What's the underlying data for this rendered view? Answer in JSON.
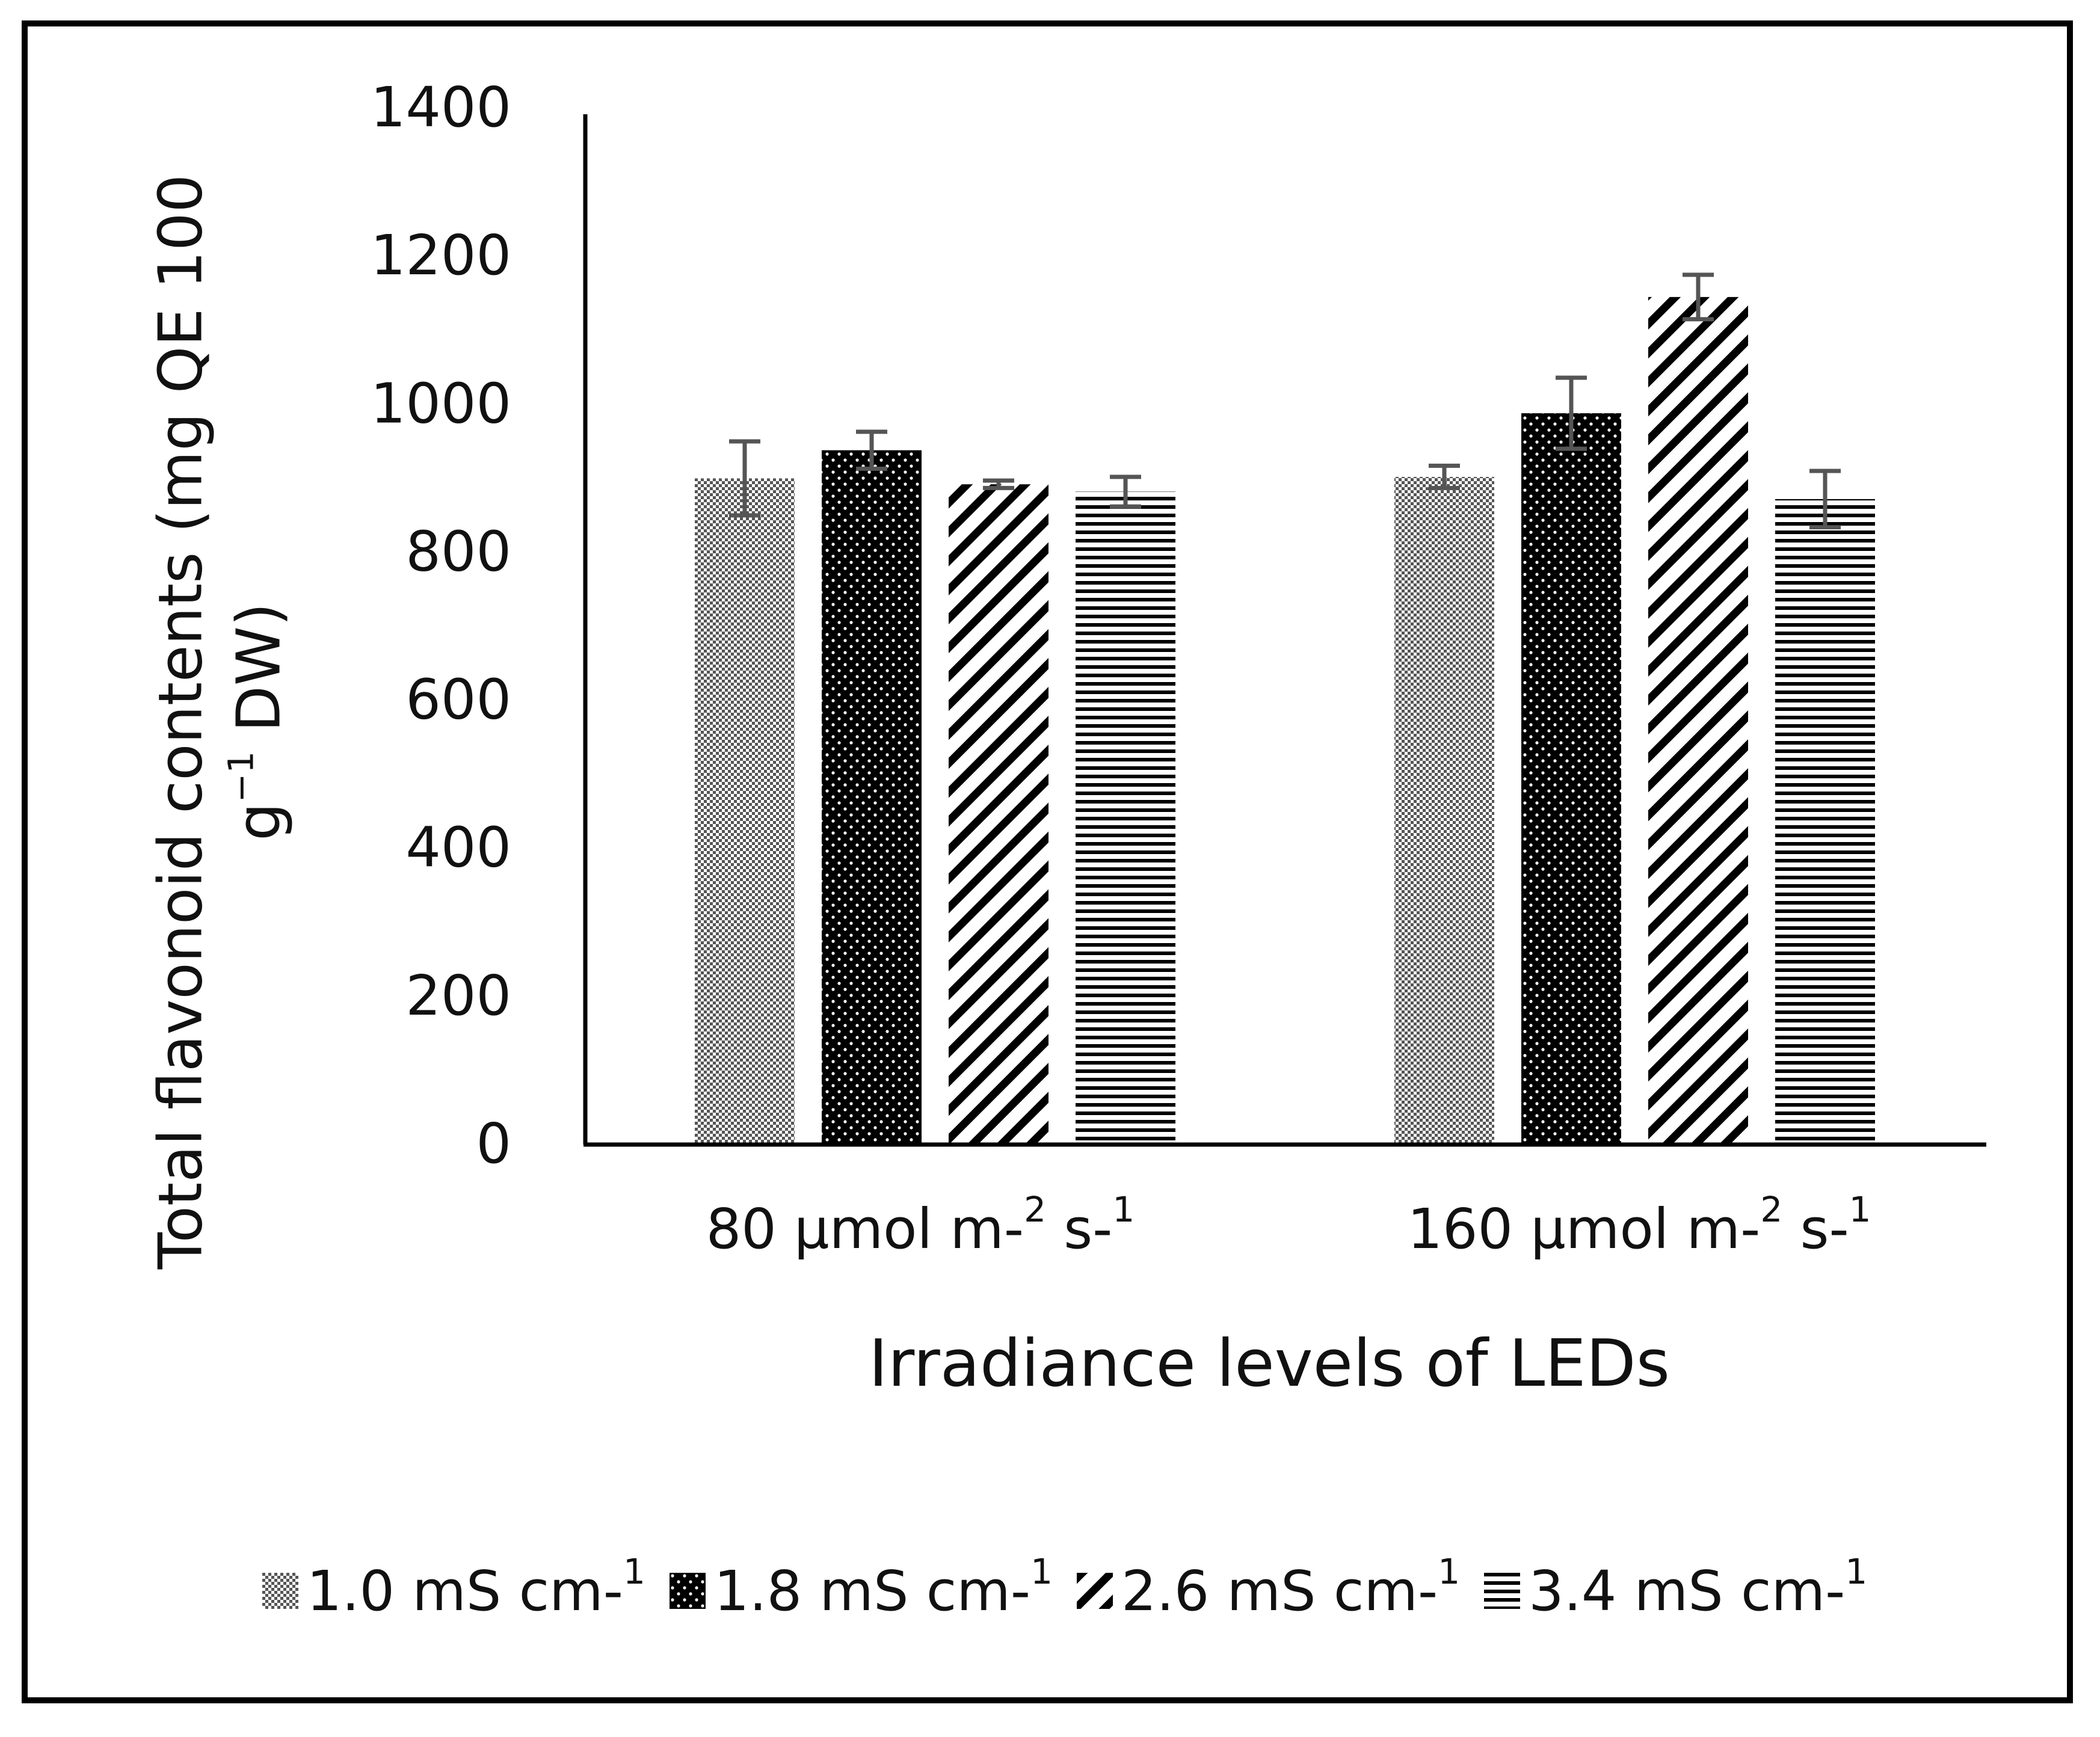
{
  "chart_data": {
    "type": "bar",
    "title": "",
    "xlabel": "Irradiance levels of LEDs",
    "ylabel_line1": "Total flavonoid contents (mg QE 100",
    "ylabel_line2_pre": "g",
    "ylabel_line2_sup": "−1",
    "ylabel_line2_post": " DW)",
    "ylim": [
      0,
      1400
    ],
    "yticks": [
      0,
      200,
      400,
      600,
      800,
      1000,
      1200,
      1400
    ],
    "categories": [
      {
        "main": "80 µmol m-",
        "sup1": "2",
        "mid": " s-",
        "sup2": "1"
      },
      {
        "main": "160 µmol m-",
        "sup1": "2",
        "mid": " s-",
        "sup2": "1"
      }
    ],
    "series": [
      {
        "name_main": "1.0 mS cm-",
        "name_sup": "1",
        "pattern": "crosshatch",
        "values": [
          900,
          902
        ],
        "errors": [
          50,
          15
        ]
      },
      {
        "name_main": "1.8 mS cm-",
        "name_sup": "1",
        "pattern": "dots",
        "values": [
          938,
          988
        ],
        "errors": [
          25,
          48
        ]
      },
      {
        "name_main": "2.6 mS cm-",
        "name_sup": "1",
        "pattern": "diagonal",
        "values": [
          892,
          1145
        ],
        "errors": [
          5,
          30
        ]
      },
      {
        "name_main": "3.4 mS cm-",
        "name_sup": "1",
        "pattern": "horizontal",
        "values": [
          882,
          872
        ],
        "errors": [
          20,
          38
        ]
      }
    ],
    "grid": false,
    "legend_position": "bottom"
  }
}
